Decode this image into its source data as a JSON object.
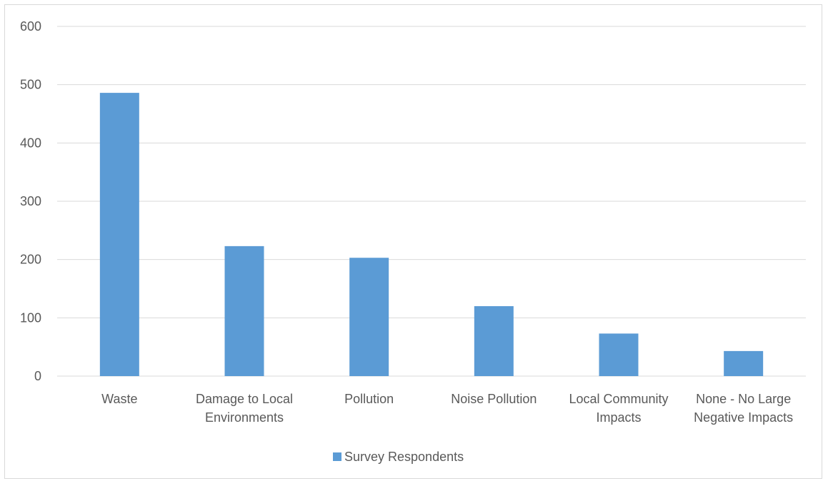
{
  "chart_data": {
    "type": "bar",
    "title": "",
    "xlabel": "",
    "ylabel": "",
    "categories": [
      [
        "Waste"
      ],
      [
        "Damage to Local",
        "Environments"
      ],
      [
        "Pollution"
      ],
      [
        "Noise Pollution"
      ],
      [
        "Local Community",
        "Impacts"
      ],
      [
        "None - No Large",
        "Negative Impacts"
      ]
    ],
    "series": [
      {
        "name": "Survey Respondents",
        "values": [
          486,
          223,
          203,
          120,
          73,
          43
        ],
        "color": "#5b9bd5"
      }
    ],
    "ylim": [
      0,
      600
    ],
    "yticks": [
      0,
      100,
      200,
      300,
      400,
      500,
      600
    ],
    "grid": true,
    "legend_position": "bottom",
    "gridline_color": "#d9d9d9"
  }
}
